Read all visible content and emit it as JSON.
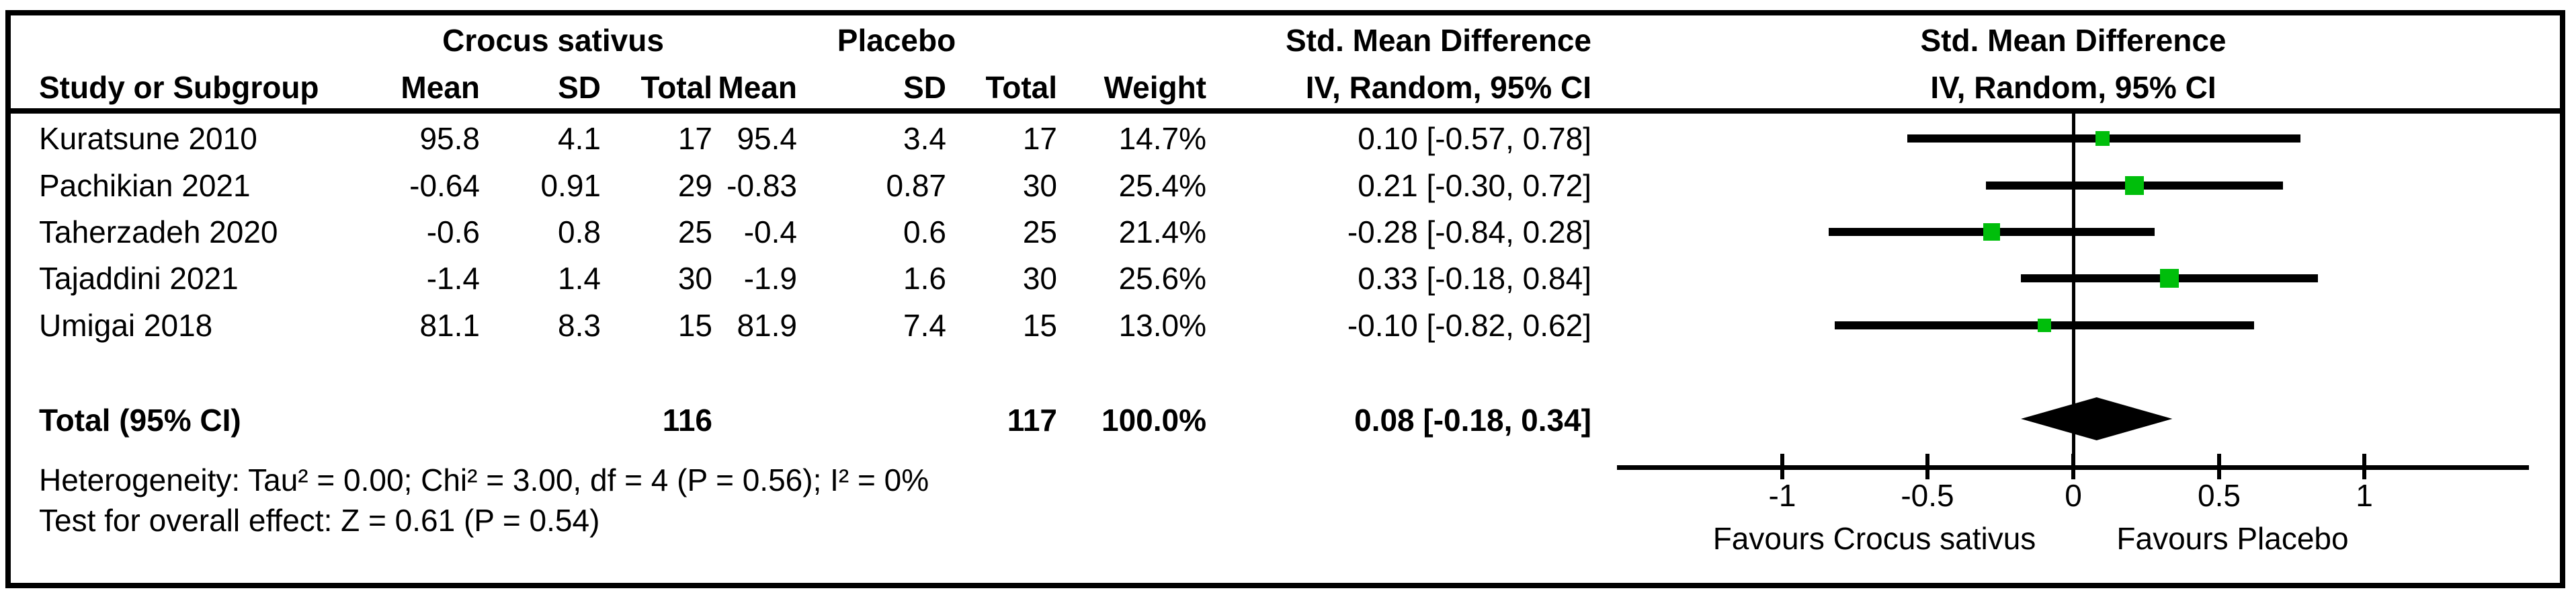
{
  "table": {
    "group1_header": "Crocus sativus",
    "group2_header": "Placebo",
    "smd_header": "Std. Mean Difference",
    "method_header": "IV, Random, 95% CI",
    "col_headers": {
      "study": "Study or Subgroup",
      "mean": "Mean",
      "sd": "SD",
      "total": "Total",
      "weight": "Weight"
    },
    "rows": [
      {
        "study": "Kuratsune 2010",
        "mean1": "95.8",
        "sd1": "4.1",
        "total1": "17",
        "mean2": "95.4",
        "sd2": "3.4",
        "total2": "17",
        "weight": "14.7%",
        "ci": "0.10 [-0.57, 0.78]"
      },
      {
        "study": "Pachikian 2021",
        "mean1": "-0.64",
        "sd1": "0.91",
        "total1": "29",
        "mean2": "-0.83",
        "sd2": "0.87",
        "total2": "30",
        "weight": "25.4%",
        "ci": "0.21 [-0.30, 0.72]"
      },
      {
        "study": "Taherzadeh 2020",
        "mean1": "-0.6",
        "sd1": "0.8",
        "total1": "25",
        "mean2": "-0.4",
        "sd2": "0.6",
        "total2": "25",
        "weight": "21.4%",
        "ci": "-0.28 [-0.84, 0.28]"
      },
      {
        "study": "Tajaddini 2021",
        "mean1": "-1.4",
        "sd1": "1.4",
        "total1": "30",
        "mean2": "-1.9",
        "sd2": "1.6",
        "total2": "30",
        "weight": "25.6%",
        "ci": "0.33 [-0.18, 0.84]"
      },
      {
        "study": "Umigai 2018",
        "mean1": "81.1",
        "sd1": "8.3",
        "total1": "15",
        "mean2": "81.9",
        "sd2": "7.4",
        "total2": "15",
        "weight": "13.0%",
        "ci": "-0.10 [-0.82, 0.62]"
      }
    ],
    "total_row": {
      "label": "Total (95% CI)",
      "total1": "116",
      "total2": "117",
      "weight": "100.0%",
      "ci": "0.08 [-0.18, 0.34]"
    },
    "heterogeneity": "Heterogeneity: Tau² = 0.00; Chi² = 3.00, df = 4 (P = 0.56); I² = 0%",
    "overall_effect": "Test for overall effect: Z = 0.61 (P = 0.54)"
  },
  "plot": {
    "smd_header": "Std. Mean Difference",
    "method_header": "IV, Random, 95% CI",
    "axis_ticks": [
      "-1",
      "-0.5",
      "0",
      "0.5",
      "1"
    ],
    "favours_left": "Favours Crocus sativus",
    "favours_right": "Favours Placebo",
    "marker_color": "#00BE0B",
    "line_color": "#000000"
  },
  "chart_data": {
    "type": "forest",
    "effect_measure": "Std. Mean Difference",
    "model": "IV, Random, 95% CI",
    "xlim": [
      -1,
      1
    ],
    "axis_ticks": [
      -1,
      -0.5,
      0,
      0.5,
      1
    ],
    "studies": [
      {
        "name": "Kuratsune 2010",
        "smd": 0.1,
        "ci_low": -0.57,
        "ci_high": 0.78,
        "weight_pct": 14.7
      },
      {
        "name": "Pachikian 2021",
        "smd": 0.21,
        "ci_low": -0.3,
        "ci_high": 0.72,
        "weight_pct": 25.4
      },
      {
        "name": "Taherzadeh 2020",
        "smd": -0.28,
        "ci_low": -0.84,
        "ci_high": 0.28,
        "weight_pct": 21.4
      },
      {
        "name": "Tajaddini 2021",
        "smd": 0.33,
        "ci_low": -0.18,
        "ci_high": 0.84,
        "weight_pct": 25.6
      },
      {
        "name": "Umigai 2018",
        "smd": -0.1,
        "ci_low": -0.82,
        "ci_high": 0.62,
        "weight_pct": 13.0
      }
    ],
    "total": {
      "smd": 0.08,
      "ci_low": -0.18,
      "ci_high": 0.34,
      "weight_pct": 100.0
    }
  }
}
